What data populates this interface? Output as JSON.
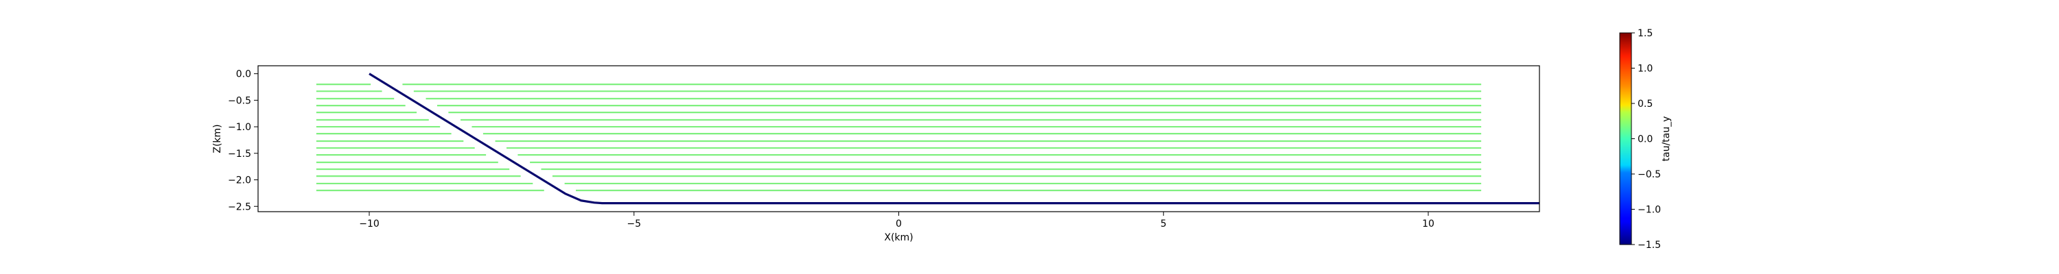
{
  "chart_data": {
    "type": "line",
    "xlabel": "X(km)",
    "ylabel": "Z(km)",
    "xlim": [
      -12.1,
      12.1
    ],
    "ylim": [
      -2.6,
      0.15
    ],
    "x_ticks": [
      {
        "v": -10,
        "label": "−10"
      },
      {
        "v": -5,
        "label": "−5"
      },
      {
        "v": 0,
        "label": "0"
      },
      {
        "v": 5,
        "label": "5"
      },
      {
        "v": 10,
        "label": "10"
      }
    ],
    "y_ticks": [
      {
        "v": 0.0,
        "label": "0.0"
      },
      {
        "v": -0.5,
        "label": "−0.5"
      },
      {
        "v": -1.0,
        "label": "−1.0"
      },
      {
        "v": -1.5,
        "label": "−1.5"
      },
      {
        "v": -2.0,
        "label": "−2.0"
      },
      {
        "v": -2.5,
        "label": "−2.5"
      }
    ],
    "grid": false,
    "fault": {
      "color": "#0a0a6e",
      "x": [
        -10.0,
        -6.3,
        -6.0,
        -5.75,
        -5.6,
        12.1
      ],
      "y": [
        0.0,
        -2.26,
        -2.39,
        -2.43,
        -2.44,
        -2.44
      ]
    },
    "layers": {
      "color": "#7ff07f",
      "x_start": -11.0,
      "x_end": 11.0,
      "depths": [
        -0.2,
        -0.33,
        -0.47,
        -0.6,
        -0.73,
        -0.87,
        -1.0,
        -1.13,
        -1.27,
        -1.4,
        -1.53,
        -1.67,
        -1.8,
        -1.93,
        -2.07,
        -2.2
      ],
      "fault_gap": 0.6
    },
    "colorbar": {
      "label": "tau/tau_y",
      "range": [
        -1.5,
        1.5
      ],
      "colormap": "jet",
      "ticks": [
        {
          "v": 1.5,
          "label": "1.5"
        },
        {
          "v": 1.0,
          "label": "1.0"
        },
        {
          "v": 0.5,
          "label": "0.5"
        },
        {
          "v": 0.0,
          "label": "0.0"
        },
        {
          "v": -0.5,
          "label": "−0.5"
        },
        {
          "v": -1.0,
          "label": "−1.0"
        },
        {
          "v": -1.5,
          "label": "−1.5"
        }
      ]
    }
  }
}
